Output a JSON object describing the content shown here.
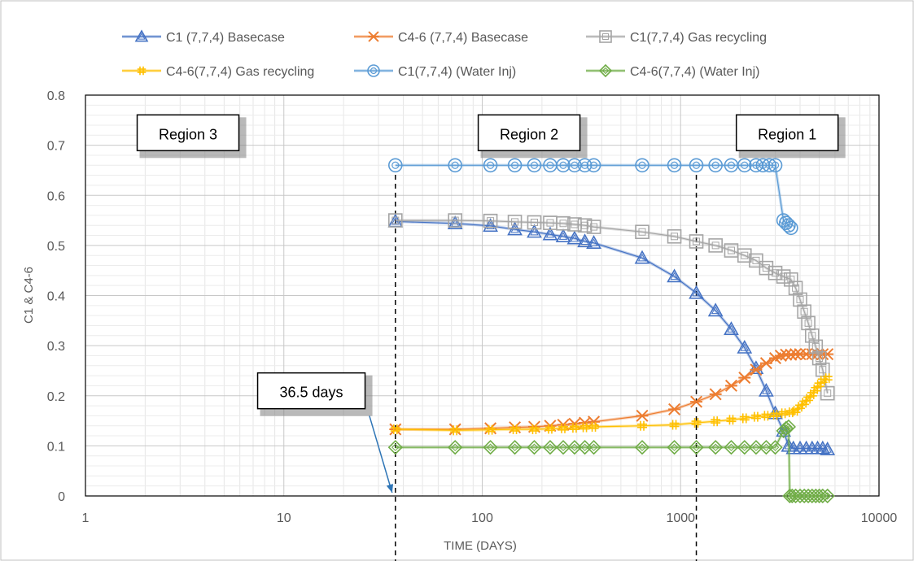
{
  "chart_data": {
    "type": "scatter",
    "x_scale": "log",
    "xlabel": "TIME (DAYS)",
    "ylabel": "C1 & C4-6",
    "xlim": [
      1,
      10000
    ],
    "ylim": [
      0,
      0.8
    ],
    "x_ticks": [
      "1",
      "10",
      "100",
      "1000",
      "10000"
    ],
    "y_ticks": [
      "0",
      "0.1",
      "0.2",
      "0.3",
      "0.4",
      "0.5",
      "0.6",
      "0.7",
      "0.8"
    ],
    "grid": "major and minor",
    "legend_position": "top",
    "series": [
      {
        "name": "C1 (7,7,4) Basecase",
        "color": "#4472c4",
        "marker": "triangle",
        "points": [
          [
            36.5,
            0.548
          ],
          [
            73,
            0.544
          ],
          [
            110,
            0.539
          ],
          [
            146,
            0.532
          ],
          [
            183,
            0.527
          ],
          [
            220,
            0.522
          ],
          [
            256,
            0.518
          ],
          [
            292,
            0.514
          ],
          [
            329,
            0.508
          ],
          [
            365,
            0.505
          ],
          [
            640,
            0.475
          ],
          [
            930,
            0.438
          ],
          [
            1200,
            0.405
          ],
          [
            1500,
            0.37
          ],
          [
            1800,
            0.333
          ],
          [
            2100,
            0.296
          ],
          [
            2400,
            0.255
          ],
          [
            2700,
            0.21
          ],
          [
            3000,
            0.165
          ],
          [
            3300,
            0.13
          ],
          [
            3500,
            0.1
          ],
          [
            3700,
            0.095
          ],
          [
            4000,
            0.095
          ],
          [
            4300,
            0.095
          ],
          [
            4600,
            0.095
          ],
          [
            4900,
            0.095
          ],
          [
            5200,
            0.095
          ],
          [
            5500,
            0.093
          ]
        ]
      },
      {
        "name": "C4-6 (7,7,4) Basecase",
        "color": "#ed7d31",
        "marker": "asterisk",
        "points": [
          [
            36.5,
            0.133
          ],
          [
            73,
            0.133
          ],
          [
            110,
            0.135
          ],
          [
            146,
            0.137
          ],
          [
            183,
            0.138
          ],
          [
            220,
            0.14
          ],
          [
            256,
            0.142
          ],
          [
            292,
            0.144
          ],
          [
            329,
            0.146
          ],
          [
            365,
            0.148
          ],
          [
            640,
            0.16
          ],
          [
            930,
            0.173
          ],
          [
            1200,
            0.188
          ],
          [
            1500,
            0.203
          ],
          [
            1800,
            0.22
          ],
          [
            2100,
            0.236
          ],
          [
            2400,
            0.252
          ],
          [
            2700,
            0.265
          ],
          [
            3000,
            0.275
          ],
          [
            3200,
            0.28
          ],
          [
            3400,
            0.282
          ],
          [
            3600,
            0.282
          ],
          [
            3800,
            0.283
          ],
          [
            4000,
            0.283
          ],
          [
            4300,
            0.283
          ],
          [
            4600,
            0.283
          ],
          [
            4900,
            0.283
          ],
          [
            5200,
            0.283
          ],
          [
            5500,
            0.283
          ]
        ]
      },
      {
        "name": "C1(7,7,4) Gas recycling",
        "color": "#a5a5a5",
        "marker": "square",
        "points": [
          [
            36.5,
            0.55
          ],
          [
            73,
            0.55
          ],
          [
            110,
            0.549
          ],
          [
            146,
            0.547
          ],
          [
            183,
            0.546
          ],
          [
            220,
            0.545
          ],
          [
            256,
            0.544
          ],
          [
            292,
            0.542
          ],
          [
            329,
            0.54
          ],
          [
            365,
            0.537
          ],
          [
            640,
            0.527
          ],
          [
            930,
            0.518
          ],
          [
            1200,
            0.508
          ],
          [
            1500,
            0.5
          ],
          [
            1800,
            0.49
          ],
          [
            2100,
            0.48
          ],
          [
            2400,
            0.47
          ],
          [
            2700,
            0.455
          ],
          [
            3000,
            0.445
          ],
          [
            3300,
            0.438
          ],
          [
            3600,
            0.432
          ],
          [
            3800,
            0.415
          ],
          [
            4000,
            0.392
          ],
          [
            4200,
            0.368
          ],
          [
            4400,
            0.345
          ],
          [
            4600,
            0.32
          ],
          [
            4800,
            0.298
          ],
          [
            5000,
            0.275
          ],
          [
            5200,
            0.252
          ],
          [
            5500,
            0.205
          ]
        ]
      },
      {
        "name": "C4-6(7,7,4) Gas recycling",
        "color": "#ffc000",
        "marker": "plus",
        "points": [
          [
            36.5,
            0.133
          ],
          [
            73,
            0.131
          ],
          [
            110,
            0.132
          ],
          [
            146,
            0.133
          ],
          [
            183,
            0.133
          ],
          [
            220,
            0.134
          ],
          [
            256,
            0.135
          ],
          [
            292,
            0.136
          ],
          [
            329,
            0.137
          ],
          [
            365,
            0.138
          ],
          [
            640,
            0.14
          ],
          [
            930,
            0.142
          ],
          [
            1200,
            0.146
          ],
          [
            1500,
            0.149
          ],
          [
            1800,
            0.152
          ],
          [
            2100,
            0.155
          ],
          [
            2400,
            0.158
          ],
          [
            2700,
            0.16
          ],
          [
            3000,
            0.162
          ],
          [
            3300,
            0.165
          ],
          [
            3600,
            0.167
          ],
          [
            3800,
            0.17
          ],
          [
            4000,
            0.178
          ],
          [
            4200,
            0.186
          ],
          [
            4400,
            0.194
          ],
          [
            4600,
            0.203
          ],
          [
            4800,
            0.213
          ],
          [
            5000,
            0.222
          ],
          [
            5200,
            0.23
          ],
          [
            5500,
            0.235
          ]
        ]
      },
      {
        "name": "C1(7,7,4) (Water Inj)",
        "color": "#5b9bd5",
        "marker": "circle",
        "points": [
          [
            36.5,
            0.66
          ],
          [
            73,
            0.66
          ],
          [
            110,
            0.66
          ],
          [
            146,
            0.66
          ],
          [
            183,
            0.66
          ],
          [
            220,
            0.66
          ],
          [
            256,
            0.66
          ],
          [
            292,
            0.66
          ],
          [
            329,
            0.66
          ],
          [
            365,
            0.66
          ],
          [
            640,
            0.66
          ],
          [
            930,
            0.66
          ],
          [
            1200,
            0.66
          ],
          [
            1500,
            0.66
          ],
          [
            1800,
            0.66
          ],
          [
            2100,
            0.66
          ],
          [
            2400,
            0.66
          ],
          [
            2600,
            0.66
          ],
          [
            2800,
            0.66
          ],
          [
            3000,
            0.66
          ],
          [
            3300,
            0.55
          ],
          [
            3400,
            0.545
          ],
          [
            3500,
            0.54
          ],
          [
            3600,
            0.535
          ]
        ]
      },
      {
        "name": "C4-6(7,7,4) (Water Inj)",
        "color": "#70ad47",
        "marker": "diamond",
        "points": [
          [
            36.5,
            0.097
          ],
          [
            73,
            0.097
          ],
          [
            110,
            0.097
          ],
          [
            146,
            0.097
          ],
          [
            183,
            0.097
          ],
          [
            220,
            0.097
          ],
          [
            256,
            0.097
          ],
          [
            292,
            0.097
          ],
          [
            329,
            0.097
          ],
          [
            365,
            0.097
          ],
          [
            640,
            0.097
          ],
          [
            930,
            0.097
          ],
          [
            1200,
            0.097
          ],
          [
            1500,
            0.097
          ],
          [
            1800,
            0.097
          ],
          [
            2100,
            0.097
          ],
          [
            2400,
            0.097
          ],
          [
            2700,
            0.097
          ],
          [
            3000,
            0.097
          ],
          [
            3300,
            0.13
          ],
          [
            3400,
            0.135
          ],
          [
            3500,
            0.138
          ],
          [
            3550,
            0.0
          ],
          [
            3650,
            0.0
          ],
          [
            3800,
            0.0
          ],
          [
            4000,
            0.0
          ],
          [
            4200,
            0.0
          ],
          [
            4400,
            0.0
          ],
          [
            4600,
            0.0
          ],
          [
            4800,
            0.0
          ],
          [
            5000,
            0.0
          ],
          [
            5200,
            0.0
          ],
          [
            5500,
            0.0
          ]
        ]
      }
    ],
    "annotations": [
      {
        "text": "Region 3",
        "x": 2.1,
        "y": 0.72
      },
      {
        "text": "Region 2",
        "x": 110,
        "y": 0.72
      },
      {
        "text": "Region 1",
        "x": 2200,
        "y": 0.72
      },
      {
        "text": "36.5 days",
        "x": 8.5,
        "y": 0.205
      }
    ],
    "reference_lines_x": [
      36.5,
      1200
    ],
    "arrow": {
      "from": [
        27,
        0.16
      ],
      "to": [
        36.5,
        0.0
      ]
    }
  }
}
